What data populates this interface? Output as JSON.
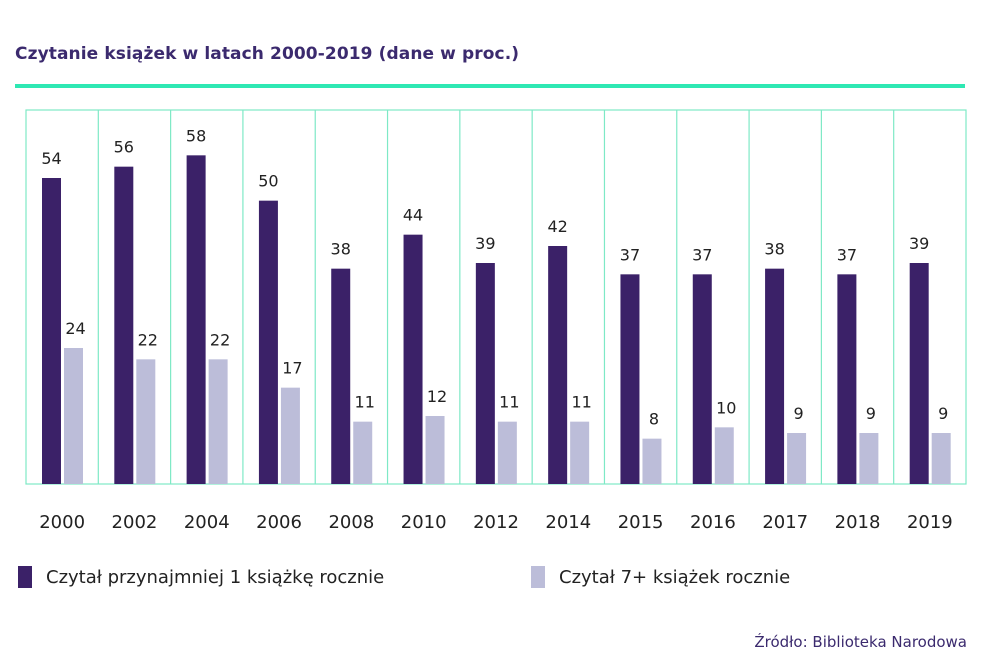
{
  "title": "Czytanie książek w latach 2000-2019 (dane w proc.)",
  "colors": {
    "accent_line": "#2ee8b3",
    "grid": "#7ee9c6",
    "series1": "#3b2168",
    "series2": "#bcbdd9",
    "title": "#3b2a6e"
  },
  "legend": {
    "series1_label": "Czytał przynajmniej 1 książkę rocznie",
    "series2_label": "Czytał 7+ książek rocznie"
  },
  "source": "Źródło: Biblioteka Narodowa",
  "chart_data": {
    "type": "bar",
    "title": "Czytanie książek w latach 2000-2019 (dane w proc.)",
    "categories": [
      "2000",
      "2002",
      "2004",
      "2006",
      "2008",
      "2010",
      "2012",
      "2014",
      "2015",
      "2016",
      "2017",
      "2018",
      "2019"
    ],
    "series": [
      {
        "name": "Czytał przynajmniej 1 książkę rocznie",
        "values": [
          54,
          56,
          58,
          50,
          38,
          44,
          39,
          42,
          37,
          37,
          38,
          37,
          39
        ]
      },
      {
        "name": "Czytał 7+ książek rocznie",
        "values": [
          24,
          22,
          22,
          17,
          11,
          12,
          11,
          11,
          8,
          10,
          9,
          9,
          9
        ]
      }
    ],
    "xlabel": "",
    "ylabel": "",
    "ylim": [
      0,
      66
    ]
  }
}
